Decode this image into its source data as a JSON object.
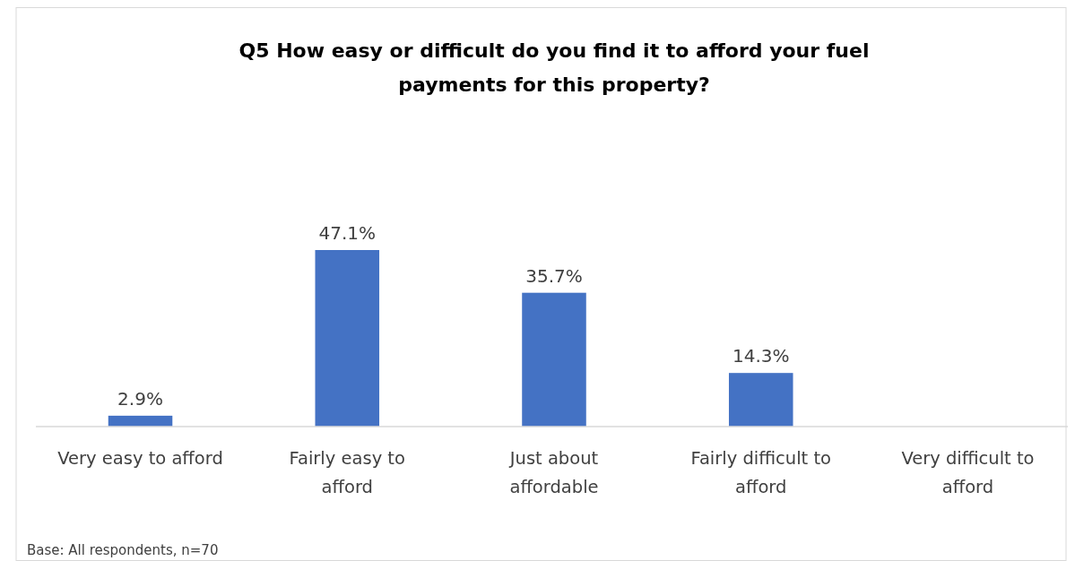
{
  "chart_data": {
    "type": "bar",
    "title": "Q5 How easy or difficult do you find it to afford your fuel payments for this property?",
    "categories": [
      "Very easy to afford",
      "Fairly easy to afford",
      "Just about affordable",
      "Fairly difficult to afford",
      "Very difficult to afford"
    ],
    "values": [
      2.9,
      47.1,
      35.7,
      14.3,
      0
    ],
    "value_labels": [
      "2.9%",
      "47.1%",
      "35.7%",
      "14.3%",
      null
    ],
    "color": "#4472c4",
    "annotations": [
      "Base: All respondents, n=70"
    ]
  }
}
